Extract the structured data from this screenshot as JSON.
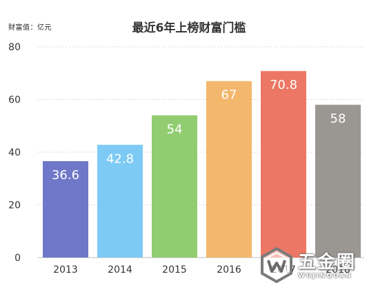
{
  "unit_label": "财富值：亿元",
  "watermark": {
    "name": "五金圈",
    "sub": "WUJINQUAN",
    "logo_icon": "wujinquan-logo-icon"
  },
  "chart_data": {
    "type": "bar",
    "title": "最近6年上榜财富门槛",
    "xlabel": "",
    "ylabel": "",
    "categories": [
      "2013",
      "2014",
      "2015",
      "2016",
      "2017",
      "2018"
    ],
    "values": [
      36.6,
      42.8,
      54,
      67,
      70.8,
      58
    ],
    "value_labels": [
      "36.6",
      "42.8",
      "54",
      "67",
      "70.8",
      "58"
    ],
    "colors": [
      "#6f78c8",
      "#7dcbf5",
      "#92cc70",
      "#f3b76d",
      "#ec7764",
      "#9a9692"
    ],
    "ylim": [
      0,
      80
    ],
    "yticks": [
      0,
      20,
      40,
      60,
      80
    ],
    "grid": true
  }
}
